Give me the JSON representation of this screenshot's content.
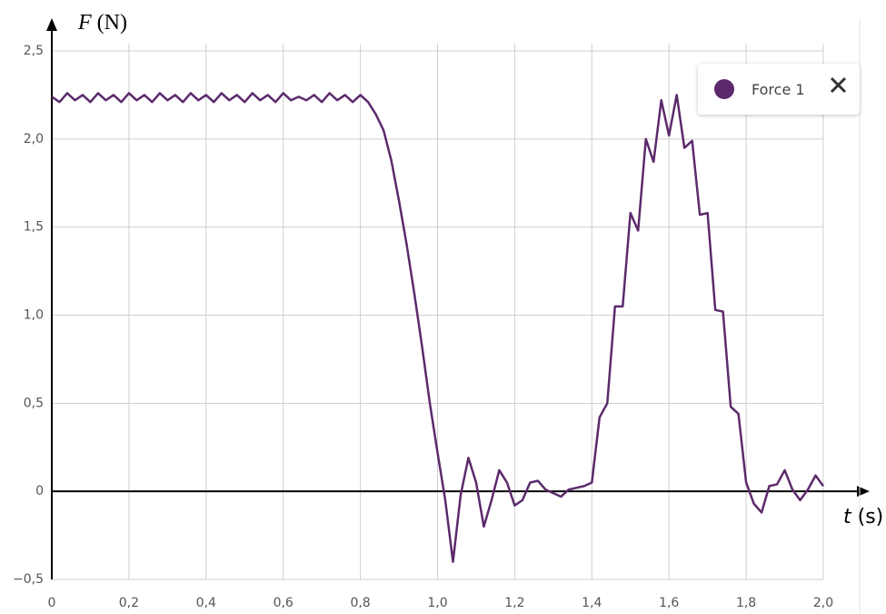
{
  "chart_data": {
    "type": "line",
    "y_label": {
      "symbol": "F",
      "unit": "(N)"
    },
    "x_label": {
      "symbol": "t",
      "unit": "(s)"
    },
    "x": [
      0,
      0.02,
      0.04,
      0.06,
      0.08,
      0.1,
      0.12,
      0.14,
      0.16,
      0.18,
      0.2,
      0.22,
      0.24,
      0.26,
      0.28,
      0.3,
      0.32,
      0.34,
      0.36,
      0.38,
      0.4,
      0.42,
      0.44,
      0.46,
      0.48,
      0.5,
      0.52,
      0.54,
      0.56,
      0.58,
      0.6,
      0.62,
      0.64,
      0.66,
      0.68,
      0.7,
      0.72,
      0.74,
      0.76,
      0.78,
      0.8,
      0.82,
      0.84,
      0.86,
      0.88,
      0.9,
      0.92,
      0.94,
      0.96,
      0.98,
      1,
      1.02,
      1.04,
      1.06,
      1.08,
      1.1,
      1.12,
      1.14,
      1.16,
      1.18,
      1.2,
      1.22,
      1.24,
      1.26,
      1.28,
      1.3,
      1.32,
      1.34,
      1.36,
      1.38,
      1.4,
      1.42,
      1.44,
      1.46,
      1.48,
      1.5,
      1.52,
      1.54,
      1.56,
      1.58,
      1.6,
      1.62,
      1.64,
      1.66,
      1.68,
      1.7,
      1.72,
      1.74,
      1.76,
      1.78,
      1.8,
      1.82,
      1.84,
      1.86,
      1.88,
      1.9,
      1.92,
      1.94,
      1.96,
      1.98,
      2
    ],
    "series": [
      {
        "name": "Force 1",
        "color": "#5c2a6c",
        "values": [
          2.24,
          2.21,
          2.26,
          2.22,
          2.25,
          2.21,
          2.26,
          2.22,
          2.25,
          2.21,
          2.26,
          2.22,
          2.25,
          2.21,
          2.26,
          2.22,
          2.25,
          2.21,
          2.26,
          2.22,
          2.25,
          2.21,
          2.26,
          2.22,
          2.25,
          2.21,
          2.26,
          2.22,
          2.25,
          2.21,
          2.26,
          2.22,
          2.24,
          2.22,
          2.25,
          2.21,
          2.26,
          2.22,
          2.25,
          2.21,
          2.25,
          2.21,
          2.14,
          2.05,
          1.88,
          1.65,
          1.4,
          1.12,
          0.82,
          0.5,
          0.22,
          -0.05,
          -0.4,
          -0.02,
          0.19,
          0.05,
          -0.2,
          -0.05,
          0.12,
          0.05,
          -0.08,
          -0.05,
          0.05,
          0.06,
          0.01,
          -0.01,
          -0.03,
          0.01,
          0.02,
          0.03,
          0.05,
          0.42,
          0.5,
          1.05,
          1.05,
          1.58,
          1.48,
          2,
          1.87,
          2.22,
          2.02,
          2.25,
          1.95,
          1.99,
          1.57,
          1.58,
          1.03,
          1.02,
          0.48,
          0.44,
          0.05,
          -0.07,
          -0.12,
          0.03,
          0.04,
          0.12,
          0.01,
          -0.05,
          0.01,
          0.09,
          0.03
        ]
      }
    ],
    "xlim": [
      0,
      2
    ],
    "xticks": [
      0,
      {
        "value": 0.2,
        "label": "0,2"
      },
      {
        "value": 0.4,
        "label": "0,4"
      },
      {
        "value": 0.6,
        "label": "0,6"
      },
      {
        "value": 0.8,
        "label": "0,8"
      },
      {
        "value": 1,
        "label": "1,0"
      },
      {
        "value": 1.2,
        "label": "1,2"
      },
      {
        "value": 1.4,
        "label": "1,4"
      },
      {
        "value": 1.6,
        "label": "1,6"
      },
      {
        "value": 1.8,
        "label": "1,8"
      },
      {
        "value": 2,
        "label": "2,0"
      }
    ],
    "ylim": [
      -0.5,
      2.5
    ],
    "yticks": [
      {
        "value": -0.5,
        "label": "−0,5"
      },
      0,
      {
        "value": 0.5,
        "label": "0,5"
      },
      {
        "value": 1,
        "label": "1,0"
      },
      {
        "value": 1.5,
        "label": "1,5"
      },
      {
        "value": 2,
        "label": "2,0"
      },
      {
        "value": 2.5,
        "label": "2,5"
      }
    ],
    "grid": true
  }
}
